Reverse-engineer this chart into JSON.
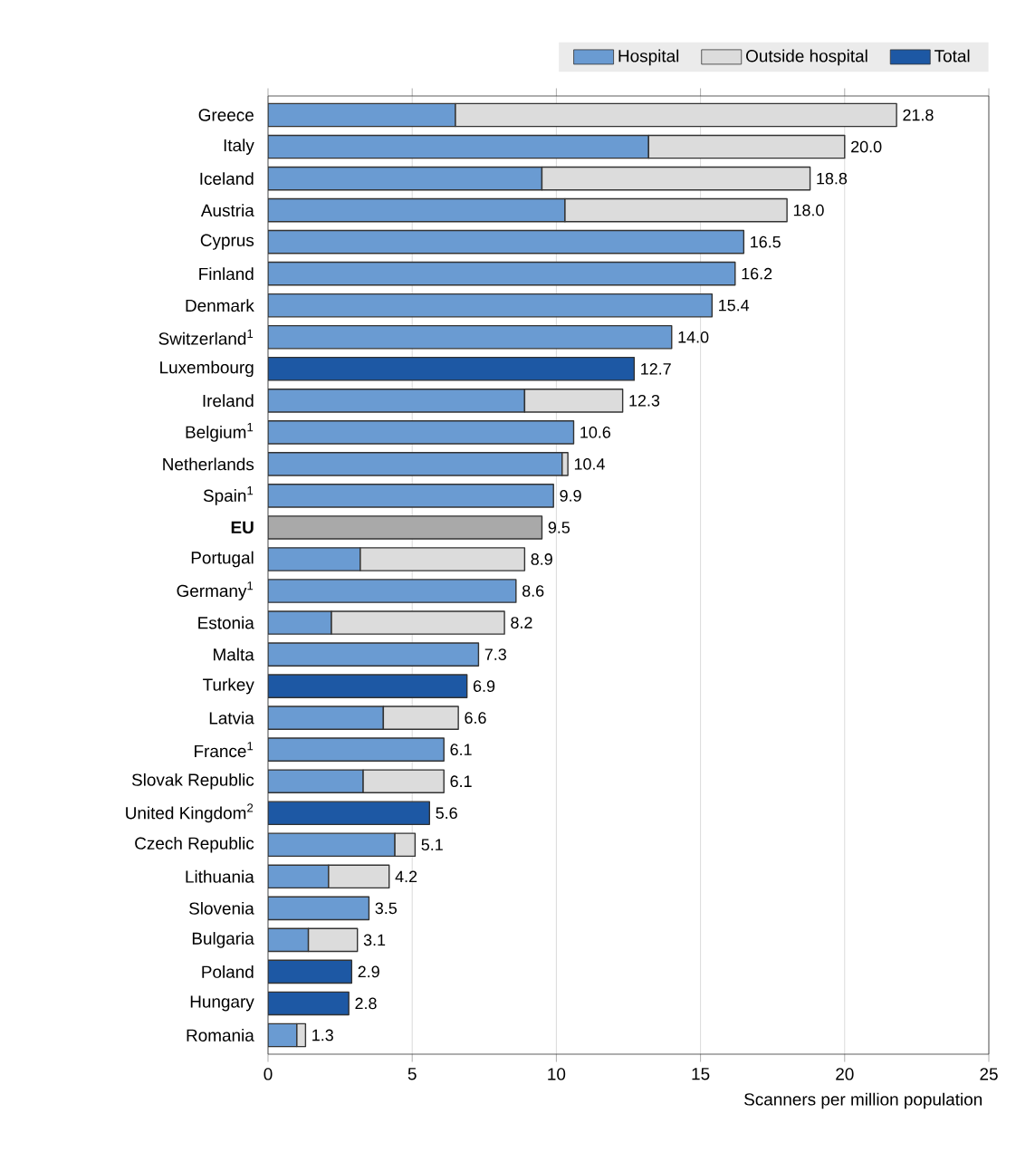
{
  "chart_data": {
    "type": "bar",
    "orientation": "horizontal",
    "stacked": true,
    "xlabel": "Scanners per million population",
    "categories": [
      "Greece",
      "Italy",
      "Iceland",
      "Austria",
      "Cyprus",
      "Finland",
      "Denmark",
      "Switzerland$^{1}$",
      "Luxembourg",
      "Ireland",
      "Belgium$^{1}$",
      "Netherlands",
      "Spain$^{1}$",
      "**EU**",
      "Portugal",
      "Germany$^{1}$",
      "Estonia",
      "Malta",
      "Turkey",
      "Latvia",
      "France$^{1}$",
      "Slovak Republic",
      "United Kingdom$^{2}$",
      "Czech Republic",
      "Lithuania",
      "Slovenia",
      "Bulgaria",
      "Poland",
      "Hungary",
      "Romania"
    ],
    "series": [
      {
        "name": "Hospital",
        "color": "#6a9bd2",
        "values": [
          6.5,
          13.2,
          9.5,
          10.3,
          16.5,
          16.2,
          15.4,
          14.0,
          null,
          8.9,
          10.6,
          10.2,
          9.9,
          null,
          3.2,
          8.6,
          2.2,
          7.3,
          null,
          4.0,
          6.1,
          3.3,
          null,
          4.4,
          2.1,
          3.5,
          1.4,
          null,
          null,
          1.0
        ]
      },
      {
        "name": "Outside hospital",
        "color": "#dcdcdc",
        "values": [
          15.3,
          6.8,
          9.3,
          7.7,
          null,
          null,
          null,
          null,
          null,
          3.4,
          null,
          0.2,
          null,
          null,
          5.7,
          null,
          6.0,
          null,
          null,
          2.6,
          null,
          2.8,
          null,
          0.7,
          2.1,
          null,
          1.7,
          null,
          null,
          0.3
        ]
      },
      {
        "name": "Total",
        "color": "#1d58a4",
        "values": [
          null,
          null,
          null,
          null,
          null,
          null,
          null,
          null,
          12.7,
          null,
          null,
          null,
          null,
          null,
          null,
          null,
          null,
          null,
          6.9,
          null,
          null,
          null,
          5.6,
          null,
          null,
          null,
          null,
          2.9,
          2.8,
          null
        ]
      },
      {
        "color": "#a9a9a9",
        "values": [
          null,
          null,
          null,
          null,
          null,
          null,
          null,
          null,
          null,
          null,
          null,
          null,
          null,
          9.5,
          null,
          null,
          null,
          null,
          null,
          null,
          null,
          null,
          null,
          null,
          null,
          null,
          null,
          null,
          null,
          null
        ]
      }
    ],
    "totals": [
      "21.8",
      "20.0",
      "18.8",
      "18.0",
      "16.5",
      "16.2",
      "15.4",
      "14.0",
      "12.7",
      "12.3",
      "10.6",
      "10.4",
      "9.9",
      "9.5",
      "8.9",
      "8.6",
      "8.2",
      "7.3",
      "6.9",
      "6.6",
      "6.1",
      "6.1",
      "5.6",
      "5.1",
      "4.2",
      "3.5",
      "3.1",
      "2.9",
      "2.8",
      "1.3"
    ],
    "xlim": [
      0,
      25
    ],
    "xticks": [
      0,
      5,
      10,
      15,
      20,
      25
    ],
    "grid": "x",
    "legend": "top"
  }
}
